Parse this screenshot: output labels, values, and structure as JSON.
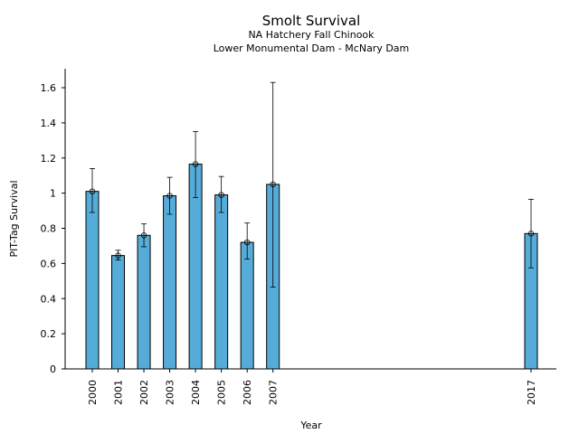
{
  "chart_data": {
    "type": "bar",
    "title": "Smolt Survival",
    "subtitle_lines": [
      "NA Hatchery Fall Chinook",
      "Lower Monumental Dam - McNary Dam"
    ],
    "xlabel": "Year",
    "ylabel": "PIT-Tag Survival",
    "ylim": [
      0,
      1.7
    ],
    "yticks": [
      0,
      0.2,
      0.4,
      0.6,
      0.8,
      1,
      1.2,
      1.4,
      1.6
    ],
    "ytick_labels": [
      "0",
      "0.2",
      "0.4",
      "0.6",
      "0.8",
      "1",
      "1.2",
      "1.4",
      "1.6"
    ],
    "x_range": [
      1999.7,
      2017.7
    ],
    "categories": [
      "2000",
      "2001",
      "2002",
      "2003",
      "2004",
      "2005",
      "2006",
      "2007",
      "2017"
    ],
    "x": [
      2000,
      2001,
      2002,
      2003,
      2004,
      2005,
      2006,
      2007,
      2017
    ],
    "values": [
      1.01,
      0.645,
      0.76,
      0.985,
      1.165,
      0.99,
      0.72,
      1.05,
      0.77
    ],
    "error_low": [
      0.89,
      0.62,
      0.695,
      0.88,
      0.975,
      0.89,
      0.625,
      0.465,
      0.575
    ],
    "error_high": [
      1.14,
      0.675,
      0.825,
      1.09,
      1.35,
      1.095,
      0.83,
      1.63,
      0.965
    ],
    "bar_color": "#56acd9",
    "grid": false,
    "legend": "none"
  }
}
